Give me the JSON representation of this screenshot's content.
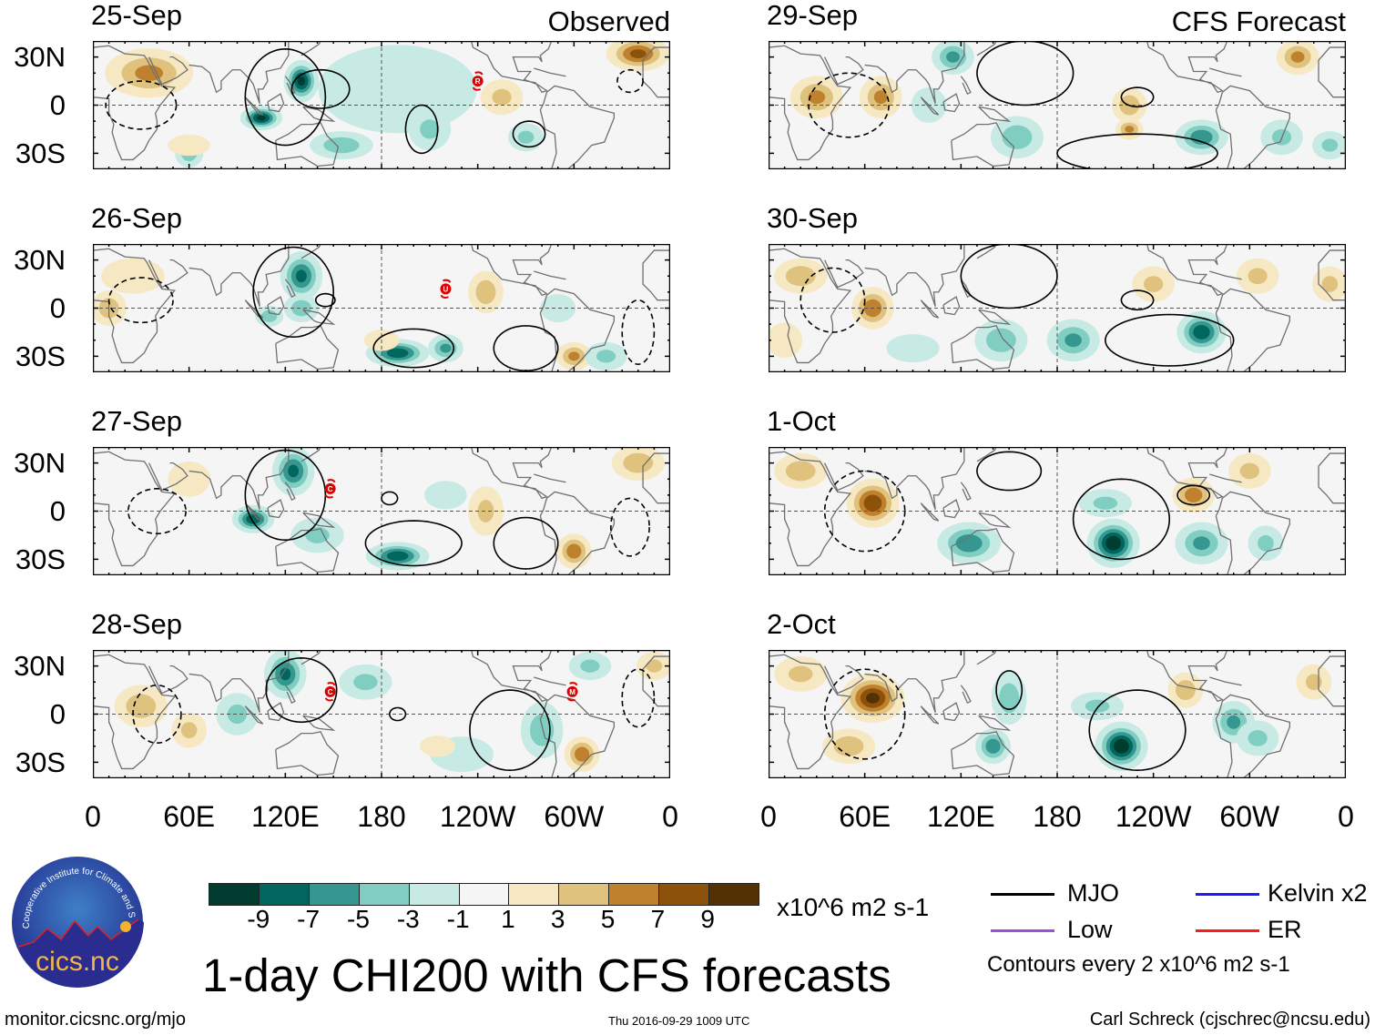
{
  "header": {
    "left_tag": "Observed",
    "right_tag": "CFS Forecast"
  },
  "title": "1-day CHI200 with CFS forecasts",
  "footer": {
    "url": "monitor.cicsnc.org/mjo",
    "timestamp": "Thu 2016-09-29 1009 UTC",
    "author": "Carl Schreck (cjschrec@ncsu.edu)"
  },
  "logo": {
    "text": "cics.nc",
    "ring_text": "Cooperative Institute for Climate and Satellites"
  },
  "legend": {
    "items": [
      {
        "label": "MJO",
        "color": "#000000"
      },
      {
        "label": "Kelvin x2",
        "color": "#1a1aff"
      },
      {
        "label": "Low",
        "color": "#9b4fdc"
      },
      {
        "label": "ER",
        "color": "#ff1a1a"
      }
    ],
    "contour_note": "Contours every 2 x10^6 m2 s-1"
  },
  "chart_data": {
    "type": "heatmap",
    "title": "1-day CHI200 with CFS forecasts",
    "units": "x10^6 m2 s-1",
    "lat_ticks": [
      "30N",
      "0",
      "30S"
    ],
    "lon_ticks": [
      "0",
      "60E",
      "120E",
      "180",
      "120W",
      "60W",
      "0"
    ],
    "lon_range": [
      0,
      360
    ],
    "lat_range": [
      -40,
      40
    ],
    "colorbar": {
      "ticks": [
        "-9",
        "-7",
        "-5",
        "-3",
        "-1",
        "1",
        "3",
        "5",
        "7",
        "9"
      ],
      "colors": [
        "#003c30",
        "#01665e",
        "#35978f",
        "#80cdc1",
        "#c7eae5",
        "#f5f5f5",
        "#f6e8c3",
        "#dfc27d",
        "#bf812d",
        "#8c510a",
        "#543005"
      ]
    },
    "panels": [
      {
        "date": "25-Sep",
        "kind": "observed",
        "anomalies": [
          [
            35,
            20,
            25,
            14,
            6
          ],
          [
            130,
            15,
            10,
            12,
            -10
          ],
          [
            105,
            -8,
            12,
            7,
            -10
          ],
          [
            190,
            10,
            45,
            25,
            -3
          ],
          [
            155,
            -25,
            18,
            8,
            -5
          ],
          [
            60,
            -30,
            8,
            8,
            -5
          ],
          [
            340,
            32,
            18,
            10,
            8
          ],
          [
            255,
            5,
            12,
            10,
            4
          ],
          [
            270,
            -20,
            10,
            8,
            -4
          ],
          [
            60,
            -25,
            12,
            6,
            3
          ],
          [
            210,
            -15,
            12,
            12,
            -4
          ]
        ],
        "contours": [
          [
            120,
            5,
            25,
            30,
            "solid"
          ],
          [
            142,
            10,
            18,
            12,
            "solid"
          ],
          [
            205,
            -15,
            10,
            15,
            "solid"
          ],
          [
            272,
            -18,
            10,
            8,
            "solid"
          ],
          [
            335,
            15,
            8,
            7,
            "dashed"
          ],
          [
            30,
            0,
            22,
            15,
            "dashed"
          ]
        ],
        "storms": [
          {
            "letter": "R",
            "lon": 240,
            "lat": 15
          }
        ]
      },
      {
        "date": "26-Sep",
        "kind": "observed",
        "anomalies": [
          [
            10,
            0,
            10,
            10,
            5
          ],
          [
            25,
            20,
            18,
            10,
            3
          ],
          [
            130,
            20,
            12,
            14,
            -8
          ],
          [
            130,
            0,
            10,
            8,
            -5
          ],
          [
            110,
            -5,
            8,
            6,
            -5
          ],
          [
            190,
            -28,
            18,
            8,
            -9
          ],
          [
            220,
            -25,
            10,
            8,
            -6
          ],
          [
            245,
            10,
            10,
            12,
            5
          ],
          [
            300,
            -30,
            10,
            8,
            6
          ],
          [
            320,
            -30,
            12,
            8,
            -4
          ],
          [
            180,
            -20,
            10,
            6,
            3
          ],
          [
            290,
            0,
            10,
            8,
            -3
          ]
        ],
        "contours": [
          [
            125,
            10,
            25,
            28,
            "solid"
          ],
          [
            200,
            -25,
            25,
            12,
            "solid"
          ],
          [
            270,
            -25,
            20,
            14,
            "solid"
          ],
          [
            145,
            5,
            6,
            4,
            "solid"
          ],
          [
            340,
            -15,
            10,
            20,
            "dashed"
          ],
          [
            30,
            5,
            20,
            14,
            "dashed"
          ]
        ],
        "storms": [
          {
            "letter": "U",
            "lon": 220,
            "lat": 12
          }
        ]
      },
      {
        "date": "27-Sep",
        "kind": "observed",
        "anomalies": [
          [
            125,
            25,
            12,
            14,
            -8
          ],
          [
            100,
            -5,
            12,
            8,
            -9
          ],
          [
            140,
            -15,
            15,
            10,
            -4
          ],
          [
            190,
            -28,
            18,
            8,
            -9
          ],
          [
            245,
            0,
            10,
            14,
            4
          ],
          [
            300,
            -25,
            10,
            10,
            7
          ],
          [
            340,
            30,
            15,
            10,
            5
          ],
          [
            60,
            20,
            12,
            10,
            3
          ],
          [
            220,
            10,
            12,
            8,
            -3
          ]
        ],
        "contours": [
          [
            120,
            10,
            25,
            28,
            "solid"
          ],
          [
            200,
            -20,
            30,
            14,
            "solid"
          ],
          [
            270,
            -20,
            20,
            16,
            "solid"
          ],
          [
            185,
            8,
            5,
            4,
            "solid"
          ],
          [
            335,
            -10,
            12,
            18,
            "dashed"
          ],
          [
            40,
            0,
            18,
            14,
            "dashed"
          ]
        ],
        "storms": [
          {
            "letter": "C",
            "lon": 148,
            "lat": 14
          }
        ]
      },
      {
        "date": "28-Sep",
        "kind": "observed",
        "anomalies": [
          [
            120,
            25,
            12,
            14,
            -8
          ],
          [
            90,
            0,
            12,
            12,
            -4
          ],
          [
            170,
            20,
            15,
            10,
            -4
          ],
          [
            280,
            -10,
            12,
            16,
            -5
          ],
          [
            305,
            -25,
            10,
            10,
            7
          ],
          [
            30,
            5,
            15,
            12,
            5
          ],
          [
            60,
            -10,
            10,
            10,
            4
          ],
          [
            230,
            -25,
            18,
            10,
            -3
          ],
          [
            310,
            30,
            12,
            8,
            -4
          ],
          [
            350,
            30,
            10,
            8,
            4
          ],
          [
            215,
            -20,
            10,
            6,
            3
          ]
        ],
        "contours": [
          [
            130,
            15,
            22,
            20,
            "solid"
          ],
          [
            260,
            -10,
            25,
            25,
            "solid"
          ],
          [
            190,
            0,
            5,
            4,
            "solid"
          ],
          [
            40,
            0,
            15,
            18,
            "dashed"
          ],
          [
            340,
            10,
            10,
            18,
            "dashed"
          ]
        ],
        "storms": [
          {
            "letter": "C",
            "lon": 148,
            "lat": 14
          },
          {
            "letter": "M",
            "lon": 299,
            "lat": 14
          }
        ]
      },
      {
        "date": "29-Sep",
        "kind": "forecast",
        "anomalies": [
          [
            30,
            5,
            15,
            12,
            6
          ],
          [
            70,
            5,
            12,
            12,
            6
          ],
          [
            115,
            30,
            12,
            10,
            -6
          ],
          [
            155,
            -20,
            15,
            12,
            -5
          ],
          [
            225,
            0,
            10,
            10,
            5
          ],
          [
            225,
            -15,
            8,
            6,
            6
          ],
          [
            270,
            -20,
            15,
            10,
            -7
          ],
          [
            320,
            -20,
            12,
            10,
            -4
          ],
          [
            330,
            30,
            12,
            10,
            6
          ],
          [
            100,
            0,
            10,
            10,
            -3
          ],
          [
            350,
            -25,
            10,
            8,
            -4
          ]
        ],
        "contours": [
          [
            230,
            5,
            10,
            6,
            "solid"
          ],
          [
            160,
            20,
            30,
            20,
            "solid"
          ],
          [
            230,
            -30,
            50,
            12,
            "solid"
          ],
          [
            50,
            0,
            25,
            20,
            "dashed"
          ]
        ],
        "storms": []
      },
      {
        "date": "30-Sep",
        "kind": "forecast",
        "anomalies": [
          [
            65,
            0,
            12,
            12,
            7
          ],
          [
            20,
            20,
            15,
            10,
            5
          ],
          [
            145,
            -20,
            15,
            12,
            -5
          ],
          [
            190,
            -20,
            15,
            12,
            -6
          ],
          [
            270,
            -15,
            14,
            12,
            -9
          ],
          [
            240,
            15,
            12,
            10,
            4
          ],
          [
            305,
            20,
            12,
            10,
            4
          ],
          [
            350,
            15,
            10,
            10,
            4
          ],
          [
            90,
            -25,
            15,
            8,
            -3
          ],
          [
            10,
            -20,
            10,
            10,
            3
          ]
        ],
        "contours": [
          [
            230,
            5,
            10,
            6,
            "solid"
          ],
          [
            150,
            20,
            30,
            20,
            "solid"
          ],
          [
            250,
            -20,
            40,
            16,
            "solid"
          ],
          [
            40,
            5,
            20,
            20,
            "dashed"
          ]
        ],
        "storms": []
      },
      {
        "date": "1-Oct",
        "kind": "forecast",
        "anomalies": [
          [
            65,
            5,
            15,
            14,
            9
          ],
          [
            20,
            25,
            15,
            10,
            5
          ],
          [
            125,
            -20,
            18,
            12,
            -7
          ],
          [
            215,
            -20,
            15,
            14,
            -11
          ],
          [
            270,
            -20,
            15,
            12,
            -6
          ],
          [
            210,
            5,
            15,
            8,
            -4
          ],
          [
            265,
            10,
            12,
            10,
            7
          ],
          [
            300,
            25,
            12,
            10,
            4
          ],
          [
            310,
            -20,
            10,
            10,
            -4
          ]
        ],
        "contours": [
          [
            220,
            -5,
            30,
            25,
            "solid"
          ],
          [
            265,
            10,
            10,
            6,
            "solid"
          ],
          [
            150,
            25,
            20,
            12,
            "solid"
          ],
          [
            60,
            0,
            25,
            25,
            "dashed"
          ]
        ],
        "storms": []
      },
      {
        "date": "2-Oct",
        "kind": "forecast",
        "anomalies": [
          [
            65,
            10,
            18,
            14,
            10
          ],
          [
            50,
            -20,
            15,
            10,
            5
          ],
          [
            20,
            25,
            15,
            10,
            4
          ],
          [
            150,
            10,
            10,
            15,
            -5
          ],
          [
            140,
            -20,
            10,
            10,
            -7
          ],
          [
            220,
            -20,
            15,
            14,
            -11
          ],
          [
            205,
            5,
            15,
            8,
            -4
          ],
          [
            290,
            -5,
            12,
            12,
            -6
          ],
          [
            260,
            15,
            10,
            10,
            5
          ],
          [
            305,
            -15,
            12,
            10,
            -4
          ],
          [
            340,
            20,
            10,
            10,
            4
          ]
        ],
        "contours": [
          [
            230,
            -10,
            30,
            25,
            "solid"
          ],
          [
            150,
            15,
            8,
            12,
            "solid"
          ],
          [
            60,
            0,
            25,
            28,
            "dashed"
          ]
        ],
        "storms": []
      }
    ]
  }
}
